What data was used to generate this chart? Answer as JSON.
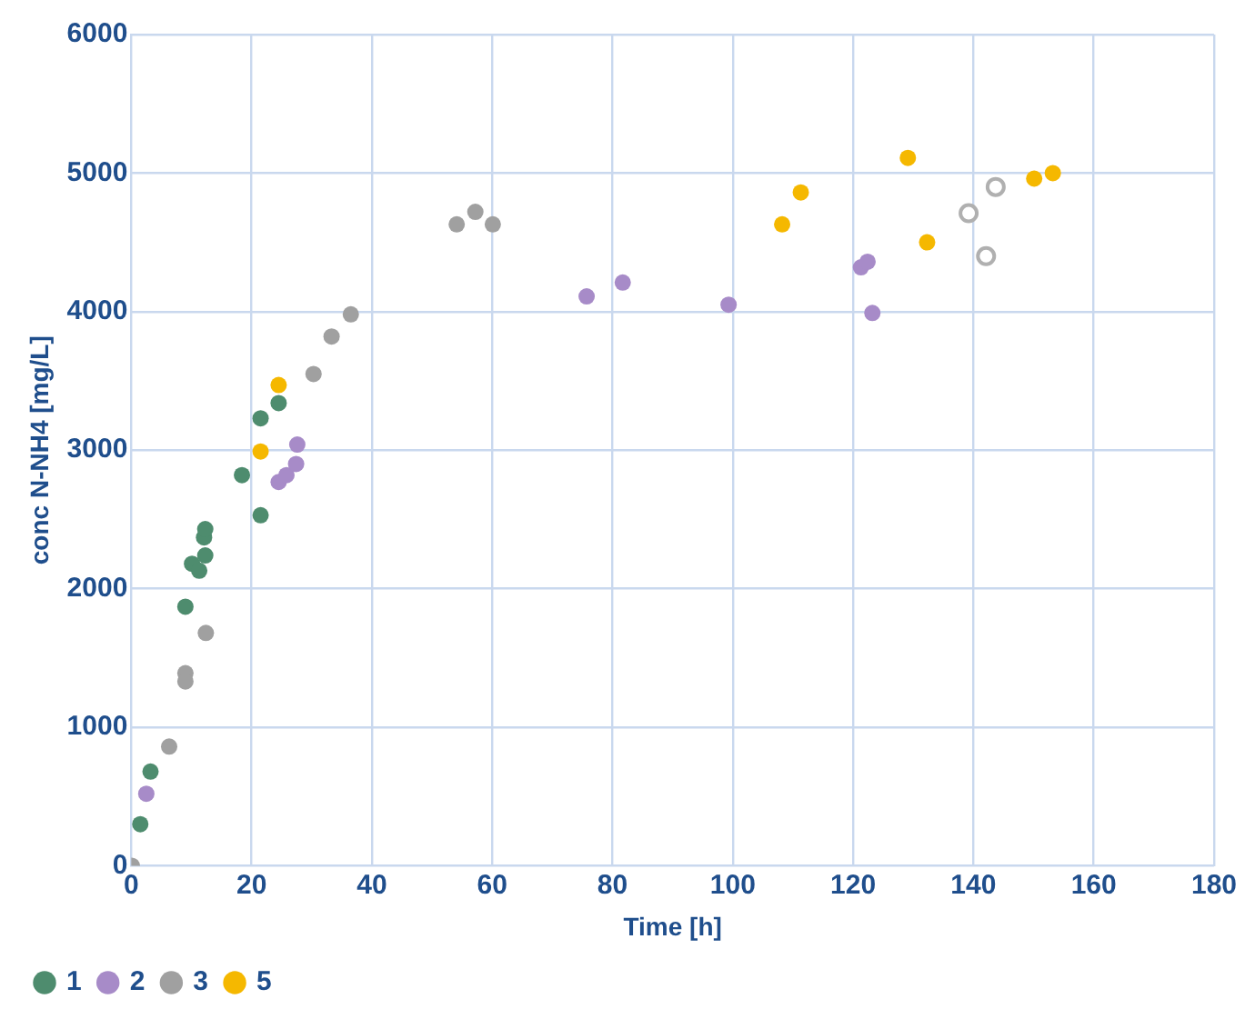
{
  "chart_data": {
    "type": "scatter",
    "xlabel": "Time [h]",
    "ylabel": "conc N-NH4 [mg/L]",
    "xlim": [
      0,
      180
    ],
    "ylim": [
      0,
      6000
    ],
    "xticks": [
      0,
      20,
      40,
      60,
      80,
      100,
      120,
      140,
      160,
      180
    ],
    "yticks": [
      0,
      1000,
      2000,
      3000,
      4000,
      5000,
      6000
    ],
    "grid": true,
    "legend": "bottom left",
    "marker": "circle",
    "series": [
      {
        "name": "1",
        "color": "#4e8c6e",
        "x": [
          1.5,
          3.2,
          9.0,
          10.1,
          11.3,
          12.3,
          12.1,
          12.3,
          18.4,
          21.5,
          21.5,
          24.5
        ],
        "values": [
          300,
          680,
          1870,
          2180,
          2130,
          2240,
          2370,
          2430,
          2820,
          2530,
          3230,
          3340
        ]
      },
      {
        "name": "2",
        "color": "#a78bc8",
        "x": [
          2.5,
          24.5,
          25.8,
          27.4,
          27.6,
          75.7,
          81.7,
          99.3,
          121.3,
          122.4,
          123.2
        ],
        "values": [
          520,
          2770,
          2820,
          2900,
          3040,
          4110,
          4210,
          4050,
          4320,
          4360,
          3990
        ]
      },
      {
        "name": "3",
        "color": "#a0a0a0",
        "x": [
          0.1,
          6.3,
          9.0,
          9.0,
          12.4,
          30.3,
          33.3,
          36.5,
          54.1,
          57.2,
          60.1
        ],
        "values": [
          0,
          860,
          1390,
          1330,
          1680,
          3550,
          3820,
          3980,
          4630,
          4720,
          4630
        ]
      },
      {
        "name": "5",
        "color": "#f5b800",
        "x": [
          21.5,
          24.5,
          108.2,
          111.3,
          129.1,
          132.3,
          150.1,
          153.2
        ],
        "values": [
          2990,
          3470,
          4630,
          4860,
          5110,
          4500,
          4960,
          5000
        ]
      },
      {
        "color": "#b0b0b0",
        "marker": "open circle",
        "x": [
          139.2,
          142.1,
          143.7
        ],
        "values": [
          4710,
          4400,
          4900
        ]
      }
    ]
  }
}
